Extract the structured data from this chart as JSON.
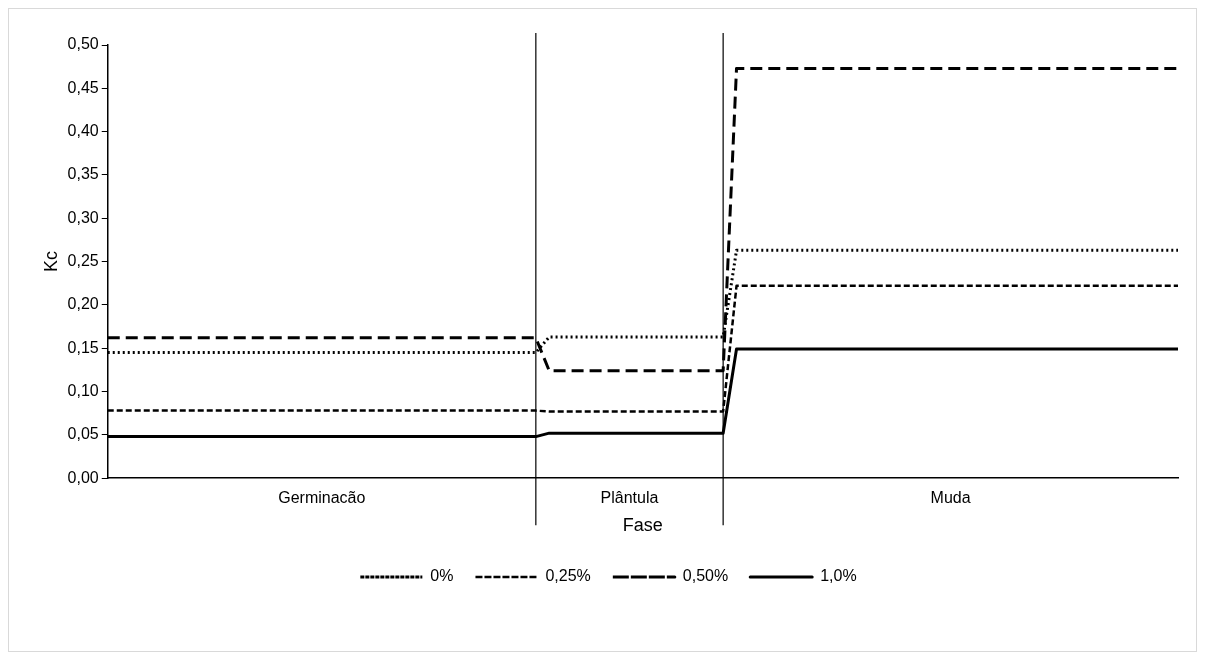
{
  "chart_data": {
    "type": "line",
    "xlabel": "Fase",
    "ylabel": "Kc",
    "categories": [
      null,
      null,
      null,
      null,
      null,
      null,
      null,
      null,
      null,
      null,
      null,
      null,
      null,
      null,
      null,
      null,
      "Germinacão",
      null,
      null,
      null,
      null,
      null,
      null,
      null,
      null,
      null,
      null,
      null,
      null,
      null,
      null,
      null,
      null,
      null,
      null,
      null,
      null,
      null,
      null,
      "Plântula",
      null,
      null,
      null,
      null,
      null,
      null,
      null,
      null,
      null,
      null,
      null,
      null,
      null,
      null,
      null,
      null,
      null,
      null,
      null,
      null,
      null,
      null,
      null,
      "Muda",
      null,
      null,
      null,
      null,
      null,
      null,
      null,
      null,
      null,
      null,
      null,
      null,
      null,
      null,
      null,
      null,
      null
    ],
    "ylim": [
      0,
      0.5
    ],
    "yticks": [
      {
        "value": 0,
        "label": "0,00"
      },
      {
        "value": 0.05,
        "label": "0,05"
      },
      {
        "value": 0.1,
        "label": "0,10"
      },
      {
        "value": 0.15,
        "label": "0,15"
      },
      {
        "value": 0.2,
        "label": "0,20"
      },
      {
        "value": 0.25,
        "label": "0,25"
      },
      {
        "value": 0.3,
        "label": "0,30"
      },
      {
        "value": 0.35,
        "label": "0,35"
      },
      {
        "value": 0.4,
        "label": "0,40"
      },
      {
        "value": 0.45,
        "label": "0,45"
      },
      {
        "value": 0.5,
        "label": "0,50"
      }
    ],
    "grid": false,
    "legend": "bottom",
    "marker": "none",
    "series": [
      {
        "name": "0%",
        "color": "#000000",
        "line_style": "dotted",
        "values": [
          0.145,
          0.145,
          0.145,
          0.145,
          0.145,
          0.145,
          0.145,
          0.145,
          0.145,
          0.145,
          0.145,
          0.145,
          0.145,
          0.145,
          0.145,
          0.145,
          0.145,
          0.145,
          0.145,
          0.145,
          0.145,
          0.145,
          0.145,
          0.145,
          0.145,
          0.145,
          0.145,
          0.145,
          0.145,
          0.145,
          0.145,
          0.145,
          0.145,
          0.163,
          0.163,
          0.163,
          0.163,
          0.163,
          0.163,
          0.163,
          0.163,
          0.163,
          0.163,
          0.163,
          0.163,
          0.163,
          0.163,
          0.263,
          0.263,
          0.263,
          0.263,
          0.263,
          0.263,
          0.263,
          0.263,
          0.263,
          0.263,
          0.263,
          0.263,
          0.263,
          0.263,
          0.263,
          0.263,
          0.263,
          0.263,
          0.263,
          0.263,
          0.263,
          0.263,
          0.263,
          0.263,
          0.263,
          0.263,
          0.263,
          0.263,
          0.263,
          0.263,
          0.263,
          0.263,
          0.263,
          0.263
        ]
      },
      {
        "name": "0,25%",
        "color": "#000000",
        "line_style": "dashed",
        "values": [
          0.078,
          0.078,
          0.078,
          0.078,
          0.078,
          0.078,
          0.078,
          0.078,
          0.078,
          0.078,
          0.078,
          0.078,
          0.078,
          0.078,
          0.078,
          0.078,
          0.078,
          0.078,
          0.078,
          0.078,
          0.078,
          0.078,
          0.078,
          0.078,
          0.078,
          0.078,
          0.078,
          0.078,
          0.078,
          0.078,
          0.078,
          0.078,
          0.078,
          0.077,
          0.077,
          0.077,
          0.077,
          0.077,
          0.077,
          0.077,
          0.077,
          0.077,
          0.077,
          0.077,
          0.077,
          0.077,
          0.077,
          0.222,
          0.222,
          0.222,
          0.222,
          0.222,
          0.222,
          0.222,
          0.222,
          0.222,
          0.222,
          0.222,
          0.222,
          0.222,
          0.222,
          0.222,
          0.222,
          0.222,
          0.222,
          0.222,
          0.222,
          0.222,
          0.222,
          0.222,
          0.222,
          0.222,
          0.222,
          0.222,
          0.222,
          0.222,
          0.222,
          0.222,
          0.222,
          0.222,
          0.222
        ]
      },
      {
        "name": "0,50%",
        "color": "#000000",
        "line_style": "dashed",
        "values": [
          0.162,
          0.162,
          0.162,
          0.162,
          0.162,
          0.162,
          0.162,
          0.162,
          0.162,
          0.162,
          0.162,
          0.162,
          0.162,
          0.162,
          0.162,
          0.162,
          0.162,
          0.162,
          0.162,
          0.162,
          0.162,
          0.162,
          0.162,
          0.162,
          0.162,
          0.162,
          0.162,
          0.162,
          0.162,
          0.162,
          0.162,
          0.162,
          0.162,
          0.124,
          0.124,
          0.124,
          0.124,
          0.124,
          0.124,
          0.124,
          0.124,
          0.124,
          0.124,
          0.124,
          0.124,
          0.124,
          0.124,
          0.473,
          0.473,
          0.473,
          0.473,
          0.473,
          0.473,
          0.473,
          0.473,
          0.473,
          0.473,
          0.473,
          0.473,
          0.473,
          0.473,
          0.473,
          0.473,
          0.473,
          0.473,
          0.473,
          0.473,
          0.473,
          0.473,
          0.473,
          0.473,
          0.473,
          0.473,
          0.473,
          0.473,
          0.473,
          0.473,
          0.473,
          0.473,
          0.473,
          0.473
        ]
      },
      {
        "name": "1,0%",
        "color": "#000000",
        "line_style": "solid",
        "values": [
          0.048,
          0.048,
          0.048,
          0.048,
          0.048,
          0.048,
          0.048,
          0.048,
          0.048,
          0.048,
          0.048,
          0.048,
          0.048,
          0.048,
          0.048,
          0.048,
          0.048,
          0.048,
          0.048,
          0.048,
          0.048,
          0.048,
          0.048,
          0.048,
          0.048,
          0.048,
          0.048,
          0.048,
          0.048,
          0.048,
          0.048,
          0.048,
          0.048,
          0.052,
          0.052,
          0.052,
          0.052,
          0.052,
          0.052,
          0.052,
          0.052,
          0.052,
          0.052,
          0.052,
          0.052,
          0.052,
          0.052,
          0.149,
          0.149,
          0.149,
          0.149,
          0.149,
          0.149,
          0.149,
          0.149,
          0.149,
          0.149,
          0.149,
          0.149,
          0.149,
          0.149,
          0.149,
          0.149,
          0.149,
          0.149,
          0.149,
          0.149,
          0.149,
          0.149,
          0.149,
          0.149,
          0.149,
          0.149,
          0.149,
          0.149,
          0.149,
          0.149,
          0.149,
          0.149,
          0.149,
          0.149
        ]
      }
    ]
  }
}
